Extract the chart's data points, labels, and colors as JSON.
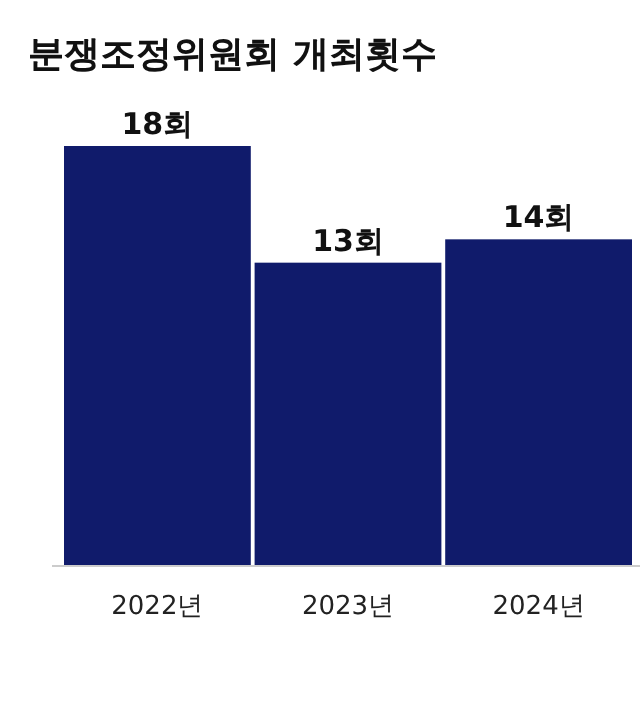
{
  "chart_data": {
    "type": "bar",
    "title": "분쟁조정위원회 개최횟수",
    "categories": [
      "2022년",
      "2023년",
      "2024년"
    ],
    "values": [
      18,
      13,
      14
    ],
    "color": "#101b6b",
    "value_labels": [
      "18회",
      "13회",
      "14회"
    ]
  }
}
